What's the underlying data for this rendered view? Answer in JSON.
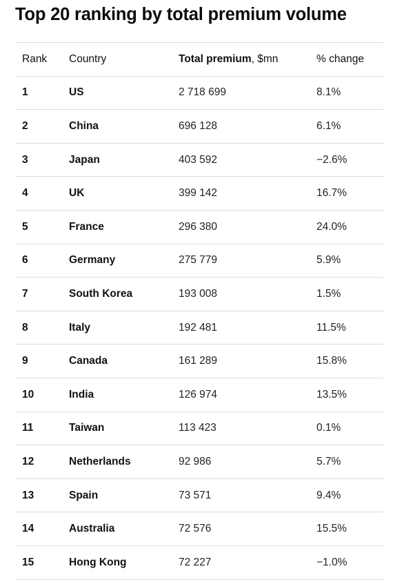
{
  "title": "Top 20 ranking by total premium volume",
  "header": {
    "rank": "Rank",
    "country": "Country",
    "premium_bold": "Total premium",
    "premium_unit": ", $mn",
    "change": "% change"
  },
  "colors": {
    "text": "#111111",
    "divider": "#dcdcdc",
    "background": "#ffffff"
  },
  "chart_data": {
    "type": "table",
    "title": "Top 20 ranking by total premium volume",
    "columns": [
      "Rank",
      "Country",
      "Total premium, $mn",
      "% change"
    ],
    "rows": [
      {
        "rank": "1",
        "country": "US",
        "premium": "2 718 699",
        "change": "8.1%"
      },
      {
        "rank": "2",
        "country": "China",
        "premium": "696 128",
        "change": "6.1%"
      },
      {
        "rank": "3",
        "country": "Japan",
        "premium": "403 592",
        "change": "−2.6%"
      },
      {
        "rank": "4",
        "country": "UK",
        "premium": "399 142",
        "change": "16.7%"
      },
      {
        "rank": "5",
        "country": "France",
        "premium": "296 380",
        "change": "24.0%"
      },
      {
        "rank": "6",
        "country": "Germany",
        "premium": "275 779",
        "change": "5.9%"
      },
      {
        "rank": "7",
        "country": "South Korea",
        "premium": "193 008",
        "change": "1.5%"
      },
      {
        "rank": "8",
        "country": "Italy",
        "premium": "192 481",
        "change": "11.5%"
      },
      {
        "rank": "9",
        "country": "Canada",
        "premium": "161 289",
        "change": "15.8%"
      },
      {
        "rank": "10",
        "country": "India",
        "premium": "126 974",
        "change": "13.5%"
      },
      {
        "rank": "11",
        "country": "Taiwan",
        "premium": "113 423",
        "change": "0.1%"
      },
      {
        "rank": "12",
        "country": "Netherlands",
        "premium": "92 986",
        "change": "5.7%"
      },
      {
        "rank": "13",
        "country": "Spain",
        "premium": "73 571",
        "change": "9.4%"
      },
      {
        "rank": "14",
        "country": "Australia",
        "premium": "72 576",
        "change": "15.5%"
      },
      {
        "rank": "15",
        "country": "Hong Kong",
        "premium": "72 227",
        "change": "−1.0%"
      }
    ]
  }
}
